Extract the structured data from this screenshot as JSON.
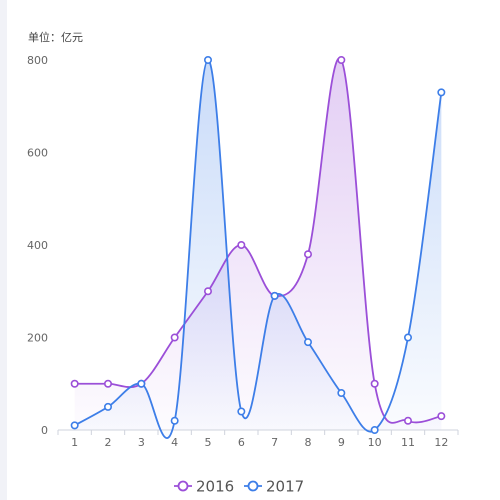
{
  "chart_data": {
    "type": "line",
    "unit_label": "单位：亿元",
    "categories": [
      "1",
      "2",
      "3",
      "4",
      "5",
      "6",
      "7",
      "8",
      "9",
      "10",
      "11",
      "12"
    ],
    "y_ticks": [
      "0",
      "200",
      "400",
      "600",
      "800"
    ],
    "ylim": [
      0,
      800
    ],
    "smooth": true,
    "area_fill": true,
    "grid": false,
    "legend_position": "bottom-center",
    "series": [
      {
        "name": "2016",
        "color": "#9b4fd8",
        "values": [
          100,
          100,
          100,
          200,
          300,
          400,
          290,
          380,
          800,
          100,
          20,
          30
        ]
      },
      {
        "name": "2017",
        "color": "#3d7ee8",
        "values": [
          10,
          50,
          100,
          20,
          800,
          40,
          290,
          190,
          80,
          0,
          200,
          730
        ]
      }
    ]
  }
}
